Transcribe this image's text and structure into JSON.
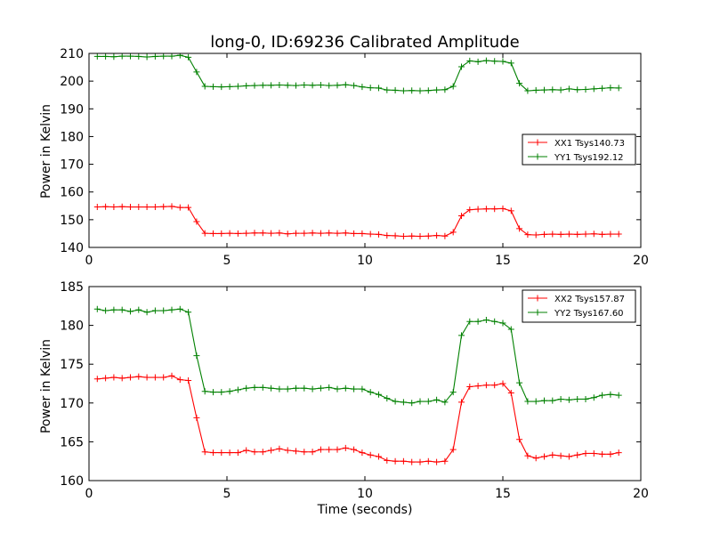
{
  "chart_data": [
    {
      "type": "line",
      "title": "long-0, ID:69236 Calibrated Amplitude",
      "xlabel": "",
      "ylabel": "Power in Kelvin",
      "xlim": [
        0,
        20
      ],
      "ylim": [
        140,
        210
      ],
      "x_ticks": [
        "0",
        "5",
        "10",
        "15",
        "20"
      ],
      "y_ticks": [
        "140",
        "150",
        "160",
        "170",
        "180",
        "190",
        "200",
        "210"
      ],
      "grid": false,
      "legend_position": "center-right",
      "x": [
        0.3,
        0.6,
        0.9,
        1.2,
        1.5,
        1.8,
        2.1,
        2.4,
        2.7,
        3.0,
        3.3,
        3.6,
        3.9,
        4.2,
        4.5,
        4.8,
        5.1,
        5.4,
        5.7,
        6.0,
        6.3,
        6.6,
        6.9,
        7.2,
        7.5,
        7.8,
        8.1,
        8.4,
        8.7,
        9.0,
        9.3,
        9.6,
        9.9,
        10.2,
        10.5,
        10.8,
        11.1,
        11.4,
        11.7,
        12.0,
        12.3,
        12.6,
        12.9,
        13.2,
        13.5,
        13.8,
        14.1,
        14.4,
        14.7,
        15.0,
        15.3,
        15.6,
        15.9,
        16.2,
        16.5,
        16.8,
        17.1,
        17.4,
        17.7,
        18.0,
        18.3,
        18.6,
        18.9,
        19.2
      ],
      "series": [
        {
          "name": "XX1 Tsys140.73",
          "color": "#ff0000",
          "values": [
            154.6,
            154.7,
            154.6,
            154.7,
            154.6,
            154.6,
            154.6,
            154.6,
            154.7,
            154.8,
            154.4,
            154.4,
            149.3,
            145.1,
            145.0,
            145.0,
            145.1,
            145.0,
            145.1,
            145.2,
            145.2,
            145.1,
            145.2,
            144.9,
            145.1,
            145.1,
            145.2,
            145.1,
            145.2,
            145.1,
            145.2,
            145.0,
            145.0,
            144.8,
            144.7,
            144.3,
            144.2,
            144.0,
            144.1,
            144.0,
            144.1,
            144.3,
            144.1,
            145.5,
            151.4,
            153.6,
            153.8,
            153.9,
            153.9,
            154.0,
            153.2,
            146.8,
            144.6,
            144.5,
            144.7,
            144.8,
            144.7,
            144.8,
            144.7,
            144.8,
            144.9,
            144.7,
            144.8,
            144.8
          ]
        },
        {
          "name": "YY1 Tsys192.12",
          "color": "#008000",
          "values": [
            208.9,
            208.9,
            208.8,
            209.0,
            209.0,
            208.9,
            208.7,
            208.9,
            209.0,
            209.0,
            209.3,
            208.6,
            203.3,
            198.1,
            198.0,
            197.9,
            198.0,
            198.1,
            198.3,
            198.4,
            198.5,
            198.5,
            198.6,
            198.5,
            198.4,
            198.6,
            198.5,
            198.6,
            198.4,
            198.5,
            198.7,
            198.4,
            197.9,
            197.6,
            197.5,
            196.8,
            196.7,
            196.5,
            196.6,
            196.5,
            196.6,
            196.8,
            196.9,
            198.1,
            205.2,
            207.3,
            207.0,
            207.4,
            207.2,
            207.1,
            206.5,
            199.2,
            196.5,
            196.7,
            196.8,
            196.9,
            196.8,
            197.2,
            196.9,
            197.0,
            197.2,
            197.4,
            197.6,
            197.5
          ]
        }
      ]
    },
    {
      "type": "line",
      "title": "",
      "xlabel": "Time (seconds)",
      "ylabel": "Power in Kelvin",
      "xlim": [
        0,
        20
      ],
      "ylim": [
        160,
        185
      ],
      "x_ticks": [
        "0",
        "5",
        "10",
        "15",
        "20"
      ],
      "y_ticks": [
        "160",
        "165",
        "170",
        "175",
        "180",
        "185"
      ],
      "grid": false,
      "legend_position": "top-right",
      "x": [
        0.3,
        0.6,
        0.9,
        1.2,
        1.5,
        1.8,
        2.1,
        2.4,
        2.7,
        3.0,
        3.3,
        3.6,
        3.9,
        4.2,
        4.5,
        4.8,
        5.1,
        5.4,
        5.7,
        6.0,
        6.3,
        6.6,
        6.9,
        7.2,
        7.5,
        7.8,
        8.1,
        8.4,
        8.7,
        9.0,
        9.3,
        9.6,
        9.9,
        10.2,
        10.5,
        10.8,
        11.1,
        11.4,
        11.7,
        12.0,
        12.3,
        12.6,
        12.9,
        13.2,
        13.5,
        13.8,
        14.1,
        14.4,
        14.7,
        15.0,
        15.3,
        15.6,
        15.9,
        16.2,
        16.5,
        16.8,
        17.1,
        17.4,
        17.7,
        18.0,
        18.3,
        18.6,
        18.9,
        19.2
      ],
      "series": [
        {
          "name": "XX2 Tsys157.87",
          "color": "#ff0000",
          "values": [
            173.1,
            173.2,
            173.3,
            173.2,
            173.3,
            173.4,
            173.3,
            173.3,
            173.3,
            173.5,
            173.0,
            172.9,
            168.1,
            163.7,
            163.6,
            163.6,
            163.6,
            163.6,
            163.9,
            163.7,
            163.7,
            163.9,
            164.1,
            163.9,
            163.8,
            163.7,
            163.7,
            164.0,
            164.0,
            164.0,
            164.2,
            164.0,
            163.6,
            163.3,
            163.1,
            162.6,
            162.5,
            162.5,
            162.4,
            162.4,
            162.5,
            162.4,
            162.5,
            164.0,
            170.1,
            172.1,
            172.2,
            172.3,
            172.3,
            172.5,
            171.3,
            165.3,
            163.2,
            162.9,
            163.1,
            163.3,
            163.2,
            163.1,
            163.3,
            163.5,
            163.5,
            163.4,
            163.4,
            163.6
          ]
        },
        {
          "name": "YY2 Tsys167.60",
          "color": "#008000",
          "values": [
            182.1,
            181.9,
            182.0,
            182.0,
            181.8,
            182.0,
            181.7,
            181.9,
            181.9,
            182.0,
            182.1,
            181.7,
            176.1,
            171.5,
            171.4,
            171.4,
            171.5,
            171.7,
            171.9,
            172.0,
            172.0,
            171.9,
            171.8,
            171.8,
            171.9,
            171.9,
            171.8,
            171.9,
            172.0,
            171.8,
            171.9,
            171.8,
            171.8,
            171.4,
            171.1,
            170.6,
            170.2,
            170.1,
            170.0,
            170.2,
            170.2,
            170.4,
            170.1,
            171.4,
            178.7,
            180.5,
            180.5,
            180.7,
            180.5,
            180.3,
            179.5,
            172.6,
            170.2,
            170.2,
            170.3,
            170.3,
            170.5,
            170.4,
            170.5,
            170.5,
            170.7,
            171.0,
            171.1,
            171.0
          ]
        }
      ]
    }
  ]
}
